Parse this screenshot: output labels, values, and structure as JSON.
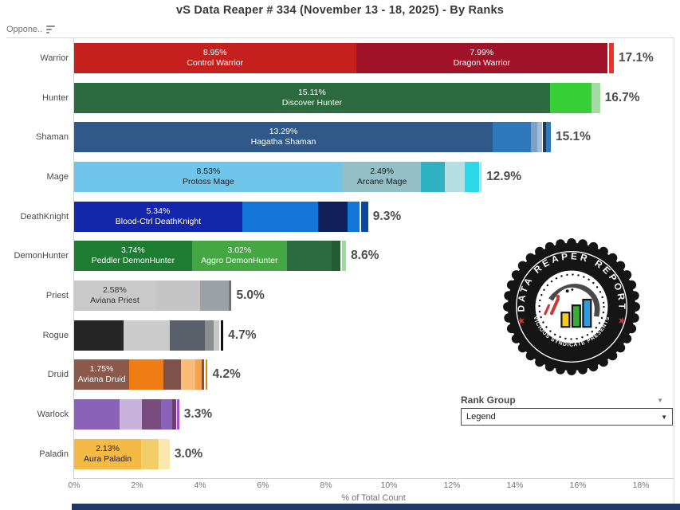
{
  "title": "vS Data Reaper # 334 (November 13 - 18, 2025) - By Ranks",
  "column_header": "Oppone..",
  "axis": {
    "ticks": [
      "0%",
      "2%",
      "4%",
      "6%",
      "8%",
      "10%",
      "12%",
      "14%",
      "16%",
      "18%"
    ],
    "title": "% of Total Count"
  },
  "rank_group": {
    "label": "Rank Group",
    "selected": "Legend"
  },
  "logo": {
    "top_text": "DATA REAPER REPORT",
    "bottom_text": "VICIOUS SYNDICATE PRESENTS"
  },
  "chart_data": {
    "type": "bar",
    "orientation": "horizontal-stacked",
    "xlabel": "% of Total Count",
    "xlim": [
      0,
      19
    ],
    "x_ticks_pct": [
      0,
      2,
      4,
      6,
      8,
      10,
      12,
      14,
      16,
      18
    ],
    "grid": false,
    "categories": [
      "Warrior",
      "Hunter",
      "Shaman",
      "Mage",
      "DeathKnight",
      "DemonHunter",
      "Priest",
      "Rogue",
      "Druid",
      "Warlock",
      "Paladin"
    ],
    "totals_pct": [
      17.1,
      16.7,
      15.1,
      12.9,
      9.3,
      8.6,
      5.0,
      4.7,
      4.2,
      3.3,
      3.0
    ],
    "rows": [
      {
        "class": "Warrior",
        "total": "17.1%",
        "segments": [
          {
            "pct": 8.95,
            "value_text": "8.95%",
            "label": "Control Warrior",
            "color": "#C5201E",
            "text_color": "#ffffff"
          },
          {
            "pct": 7.99,
            "value_text": "7.99%",
            "label": "Dragon Warrior",
            "color": "#A01328",
            "text_color": "#ffffff"
          },
          {
            "pct": 0.16,
            "color": "#E8342A",
            "gap": true
          }
        ]
      },
      {
        "class": "Hunter",
        "total": "16.7%",
        "segments": [
          {
            "pct": 15.11,
            "value_text": "15.11%",
            "label": "Discover Hunter",
            "color": "#2C6A3F",
            "text_color": "#ffffff"
          },
          {
            "pct": 1.32,
            "color": "#37CE37"
          },
          {
            "pct": 0.27,
            "color": "#A3DBA0"
          }
        ]
      },
      {
        "class": "Shaman",
        "total": "15.1%",
        "segments": [
          {
            "pct": 13.29,
            "value_text": "13.29%",
            "label": "Hagatha Shaman",
            "color": "#30598A",
            "text_color": "#ffffff"
          },
          {
            "pct": 1.21,
            "color": "#2E78BC"
          },
          {
            "pct": 0.22,
            "color": "#7DA0C6"
          },
          {
            "pct": 0.13,
            "color": "#A3BCD9"
          },
          {
            "pct": 0.1,
            "color": "#1A3A5E",
            "gap": true
          },
          {
            "pct": 0.15,
            "color": "#2E78BC"
          }
        ]
      },
      {
        "class": "Mage",
        "total": "12.9%",
        "segments": [
          {
            "pct": 8.53,
            "value_text": "8.53%",
            "label": "Protoss Mage",
            "color": "#70C6EA",
            "text_color": "#1a1a1a"
          },
          {
            "pct": 2.49,
            "value_text": "2.49%",
            "label": "Arcane Mage",
            "color": "#93C0C6",
            "text_color": "#1a1a1a"
          },
          {
            "pct": 0.76,
            "color": "#2EB2C4"
          },
          {
            "pct": 0.63,
            "color": "#B6DFE5"
          },
          {
            "pct": 0.44,
            "color": "#2BD7E8"
          },
          {
            "pct": 0.05,
            "color": "#9AE8F0",
            "gap": true
          }
        ]
      },
      {
        "class": "DeathKnight",
        "total": "9.3%",
        "segments": [
          {
            "pct": 5.34,
            "value_text": "5.34%",
            "label": "Blood-Ctrl DeathKnight",
            "color": "#1426AC",
            "text_color": "#ffffff"
          },
          {
            "pct": 2.42,
            "color": "#1376D8"
          },
          {
            "pct": 0.93,
            "color": "#101F57"
          },
          {
            "pct": 0.38,
            "color": "#1376D8"
          },
          {
            "pct": 0.23,
            "color": "#0D47A4",
            "gap": true
          }
        ]
      },
      {
        "class": "DemonHunter",
        "total": "8.6%",
        "segments": [
          {
            "pct": 3.74,
            "value_text": "3.74%",
            "label": "Peddler DemonHunter",
            "color": "#1F7D33",
            "text_color": "#ffffff"
          },
          {
            "pct": 3.02,
            "value_text": "3.02%",
            "label": "Aggro DemonHunter",
            "color": "#44A744",
            "text_color": "#ffffff"
          },
          {
            "pct": 1.41,
            "color": "#2C6B3D"
          },
          {
            "pct": 0.3,
            "color": "#235E32"
          },
          {
            "pct": 0.13,
            "color": "#95DF95",
            "gap": true
          }
        ]
      },
      {
        "class": "Priest",
        "total": "5.0%",
        "segments": [
          {
            "pct": 2.58,
            "value_text": "2.58%",
            "label": "Aviana Priest",
            "color": "#C9C9C9",
            "text_color": "#333333"
          },
          {
            "pct": 1.42,
            "color": "#C5C5C5"
          },
          {
            "pct": 0.92,
            "color": "#9BA2A7"
          },
          {
            "pct": 0.08,
            "color": "#71767A"
          }
        ]
      },
      {
        "class": "Rogue",
        "total": "4.7%",
        "segments": [
          {
            "pct": 1.56,
            "color": "#262626"
          },
          {
            "pct": 1.47,
            "color": "#CBCBCB"
          },
          {
            "pct": 1.12,
            "color": "#5A6069"
          },
          {
            "pct": 0.29,
            "color": "#8B8E91"
          },
          {
            "pct": 0.17,
            "color": "#C7C7C7"
          },
          {
            "pct": 0.09,
            "color": "#141414",
            "gap": true
          }
        ]
      },
      {
        "class": "Druid",
        "total": "4.2%",
        "segments": [
          {
            "pct": 1.75,
            "value_text": "1.75%",
            "label": "Aviana Druid",
            "color": "#8A594B",
            "text_color": "#ffffff"
          },
          {
            "pct": 1.09,
            "color": "#F07D14"
          },
          {
            "pct": 0.55,
            "color": "#7E5248"
          },
          {
            "pct": 0.46,
            "color": "#F9BC77"
          },
          {
            "pct": 0.2,
            "color": "#F5A04C"
          },
          {
            "pct": 0.08,
            "color": "#7E5248"
          },
          {
            "pct": 0.07,
            "color": "#F07D14",
            "gap": true
          }
        ]
      },
      {
        "class": "Warlock",
        "total": "3.3%",
        "segments": [
          {
            "pct": 1.45,
            "color": "#8A63B8"
          },
          {
            "pct": 0.7,
            "color": "#C9B3DC"
          },
          {
            "pct": 0.61,
            "color": "#7A4B7E"
          },
          {
            "pct": 0.35,
            "color": "#8A63B8"
          },
          {
            "pct": 0.13,
            "color": "#6B3F6E"
          },
          {
            "pct": 0.06,
            "color": "#A44FD6",
            "gap": true
          }
        ]
      },
      {
        "class": "Paladin",
        "total": "3.0%",
        "segments": [
          {
            "pct": 2.13,
            "value_text": "2.13%",
            "label": "Aura Paladin",
            "color": "#F5B945",
            "text_color": "#1a1a1a"
          },
          {
            "pct": 0.55,
            "color": "#F2CE68"
          },
          {
            "pct": 0.32,
            "color": "#F9E9AE",
            "gap": true
          }
        ]
      }
    ]
  },
  "colors": {
    "axis_text": "#757575",
    "total_label": "#4d4d4d",
    "bottom_strip": "#1f3864",
    "logo_red": "#C43A36",
    "logo_bar_yellow": "#F2CB1D",
    "logo_bar_green": "#3BAA3B",
    "logo_bar_blue": "#2E9BE6"
  }
}
